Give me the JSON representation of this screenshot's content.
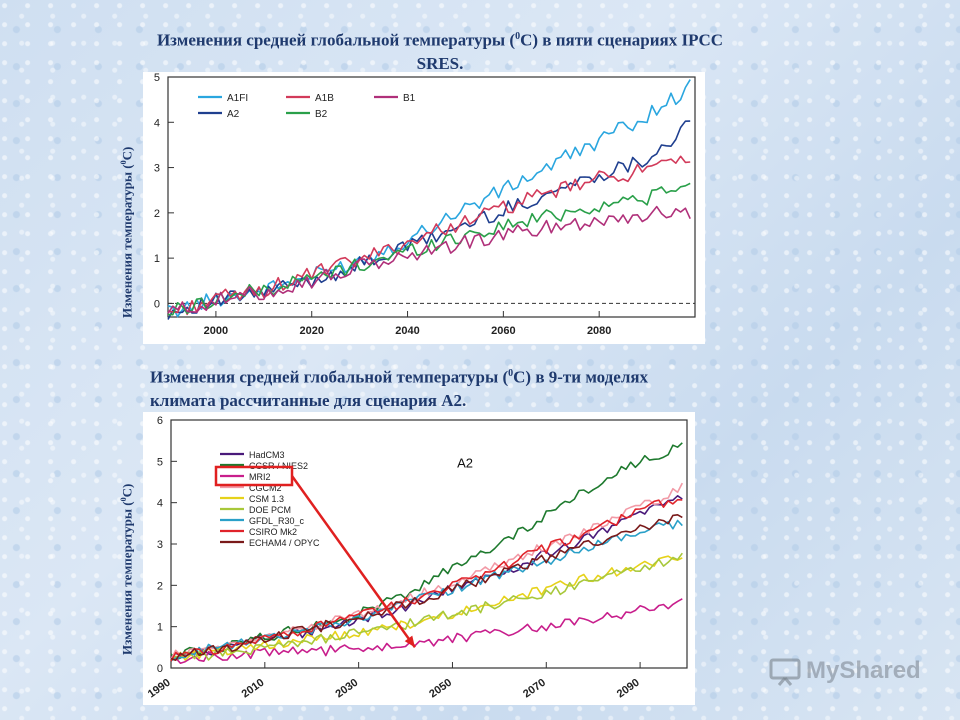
{
  "title1": {
    "main": "Изменения средней глобальной температуры (",
    "sup": "0",
    "rest": "С) в пяти сценариях IPCC SRES."
  },
  "title2": {
    "main": "Изменения средней глобальной температуры (",
    "sup": "0",
    "rest": "С) в 9-ти моделях климата рассчитанные для сценария А2."
  },
  "ylabel1": {
    "main": "Изменения температуры (",
    "sup": "0",
    "rest": "С)"
  },
  "ylabel2": {
    "main": "Изменения температуры (",
    "sup": "0",
    "rest": "С)"
  },
  "watermark": "MyShared",
  "chart_data": [
    {
      "type": "line",
      "xlim": [
        1990,
        2100
      ],
      "ylim": [
        -0.3,
        5
      ],
      "x_ticks": [
        2000,
        2020,
        2040,
        2060,
        2080
      ],
      "y_ticks": [
        0,
        1,
        2,
        3,
        4,
        5
      ],
      "zero_line": "dashed",
      "grid": false,
      "legend_position": "top-left",
      "series": [
        {
          "name": "A1FI",
          "color": "#2aa6df",
          "x": [
            1990,
            2000,
            2010,
            2020,
            2030,
            2040,
            2050,
            2060,
            2070,
            2080,
            2090,
            2100
          ],
          "values": [
            -0.2,
            0.1,
            0.3,
            0.6,
            0.95,
            1.4,
            2.0,
            2.5,
            3.05,
            3.6,
            4.15,
            4.85
          ]
        },
        {
          "name": "A2",
          "color": "#1f3f8f",
          "x": [
            1990,
            2000,
            2010,
            2020,
            2030,
            2040,
            2050,
            2060,
            2070,
            2080,
            2090,
            2100
          ],
          "values": [
            -0.2,
            0.05,
            0.25,
            0.5,
            0.85,
            1.25,
            1.65,
            2.05,
            2.45,
            2.85,
            3.2,
            4.05
          ]
        },
        {
          "name": "A1B",
          "color": "#d23a5a",
          "x": [
            1990,
            2000,
            2010,
            2020,
            2030,
            2040,
            2050,
            2060,
            2070,
            2080,
            2090,
            2100
          ],
          "values": [
            -0.2,
            0.1,
            0.3,
            0.65,
            0.95,
            1.35,
            1.75,
            2.1,
            2.45,
            2.75,
            2.95,
            3.15
          ]
        },
        {
          "name": "B2",
          "color": "#2aa04a",
          "x": [
            1990,
            2000,
            2010,
            2020,
            2030,
            2040,
            2050,
            2060,
            2070,
            2080,
            2090,
            2100
          ],
          "values": [
            -0.2,
            0.1,
            0.3,
            0.55,
            0.85,
            1.15,
            1.45,
            1.7,
            1.95,
            2.15,
            2.35,
            2.6
          ]
        },
        {
          "name": "B1",
          "color": "#b0307a",
          "x": [
            1990,
            2000,
            2010,
            2020,
            2030,
            2040,
            2050,
            2060,
            2070,
            2080,
            2090,
            2100
          ],
          "values": [
            -0.2,
            0.05,
            0.25,
            0.5,
            0.8,
            1.05,
            1.3,
            1.5,
            1.7,
            1.85,
            1.95,
            2.05
          ]
        }
      ]
    },
    {
      "type": "line",
      "annotation": "A2",
      "xlim": [
        1990,
        2100
      ],
      "ylim": [
        0,
        6
      ],
      "x_ticks": [
        1990,
        2010,
        2030,
        2050,
        2070,
        2090
      ],
      "y_ticks": [
        0,
        1,
        2,
        3,
        4,
        5,
        6
      ],
      "grid": false,
      "legend_position": "top-left",
      "highlight": {
        "legend_entry": "MRI2",
        "box_color": "#e02020",
        "arrow_to": [
          2042,
          0.5
        ]
      },
      "series": [
        {
          "name": "HadCM3",
          "color": "#4a1a7a",
          "x": [
            1990,
            2000,
            2010,
            2020,
            2030,
            2040,
            2050,
            2060,
            2070,
            2080,
            2090,
            2100
          ],
          "values": [
            0.25,
            0.45,
            0.7,
            0.9,
            1.15,
            1.5,
            1.9,
            2.3,
            2.75,
            3.2,
            3.7,
            4.2
          ]
        },
        {
          "name": "CCSR / NIES2",
          "color": "#1e7a2e",
          "x": [
            1990,
            2000,
            2010,
            2020,
            2030,
            2040,
            2050,
            2060,
            2070,
            2080,
            2090,
            2100
          ],
          "values": [
            0.3,
            0.5,
            0.75,
            1.0,
            1.3,
            1.8,
            2.4,
            3.0,
            3.7,
            4.4,
            5.0,
            5.4
          ]
        },
        {
          "name": "MRI2",
          "color": "#c81e8c",
          "x": [
            1990,
            2000,
            2010,
            2020,
            2030,
            2040,
            2050,
            2060,
            2070,
            2080,
            2090,
            2100
          ],
          "values": [
            0.2,
            0.3,
            0.35,
            0.4,
            0.45,
            0.55,
            0.7,
            0.85,
            1.0,
            1.2,
            1.4,
            1.6
          ]
        },
        {
          "name": "CGCM2",
          "color": "#f29aa6",
          "x": [
            1990,
            2000,
            2010,
            2020,
            2030,
            2040,
            2050,
            2060,
            2070,
            2080,
            2090,
            2100
          ],
          "values": [
            0.3,
            0.5,
            0.75,
            1.0,
            1.3,
            1.65,
            2.05,
            2.5,
            2.95,
            3.4,
            3.9,
            4.4
          ]
        },
        {
          "name": "CSM 1.3",
          "color": "#e6d21a",
          "x": [
            1990,
            2000,
            2010,
            2020,
            2030,
            2040,
            2050,
            2060,
            2070,
            2080,
            2090,
            2100
          ],
          "values": [
            0.25,
            0.4,
            0.55,
            0.7,
            0.85,
            1.05,
            1.3,
            1.6,
            1.9,
            2.2,
            2.5,
            2.7
          ]
        },
        {
          "name": "DOE PCM",
          "color": "#a8c83a",
          "x": [
            1990,
            2000,
            2010,
            2020,
            2030,
            2040,
            2050,
            2060,
            2070,
            2080,
            2090,
            2100
          ],
          "values": [
            0.2,
            0.35,
            0.5,
            0.65,
            0.85,
            1.05,
            1.3,
            1.55,
            1.8,
            2.1,
            2.4,
            2.7
          ]
        },
        {
          "name": "GFDL_R30_c",
          "color": "#2aa0c8",
          "x": [
            1990,
            2000,
            2010,
            2020,
            2030,
            2040,
            2050,
            2060,
            2070,
            2080,
            2090,
            2100
          ],
          "values": [
            0.3,
            0.5,
            0.7,
            0.95,
            1.2,
            1.55,
            1.9,
            2.25,
            2.6,
            2.95,
            3.3,
            3.55
          ]
        },
        {
          "name": "CSIRO Mk2",
          "color": "#e0232a",
          "x": [
            1990,
            2000,
            2010,
            2020,
            2030,
            2040,
            2050,
            2060,
            2070,
            2080,
            2090,
            2100
          ],
          "values": [
            0.25,
            0.45,
            0.7,
            0.95,
            1.25,
            1.6,
            2.0,
            2.45,
            2.9,
            3.35,
            3.8,
            4.2
          ]
        },
        {
          "name": "ECHAM4 / OPYC",
          "color": "#7a1a1a",
          "x": [
            1990,
            2000,
            2010,
            2020,
            2030,
            2040,
            2050,
            2060,
            2070,
            2080,
            2090,
            2100
          ],
          "values": [
            0.25,
            0.45,
            0.7,
            0.95,
            1.2,
            1.55,
            1.9,
            2.3,
            2.65,
            3.0,
            3.35,
            3.7
          ]
        }
      ]
    }
  ]
}
